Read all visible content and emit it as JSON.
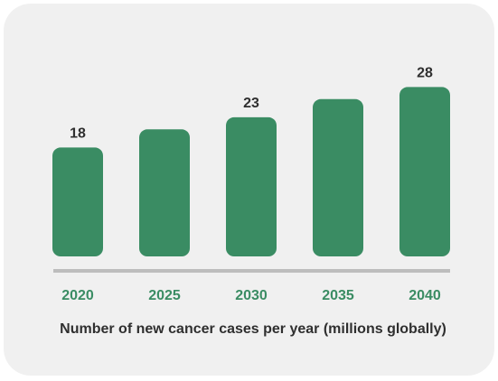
{
  "chart_data": {
    "type": "bar",
    "categories": [
      "2020",
      "2025",
      "2030",
      "2035",
      "2040"
    ],
    "values": [
      18,
      21,
      23,
      26,
      28
    ],
    "value_labels": [
      "18",
      "",
      "23",
      "",
      "28"
    ],
    "title": "",
    "xlabel": "Number of new cancer cases per year (millions globally)",
    "ylabel": "",
    "ylim": [
      0,
      30
    ],
    "grid": false,
    "colors": {
      "bar": "#3a8c63",
      "tick_label": "#3a8c63",
      "value_label": "#2f2f2f",
      "axis": "#bdbdbd"
    }
  }
}
